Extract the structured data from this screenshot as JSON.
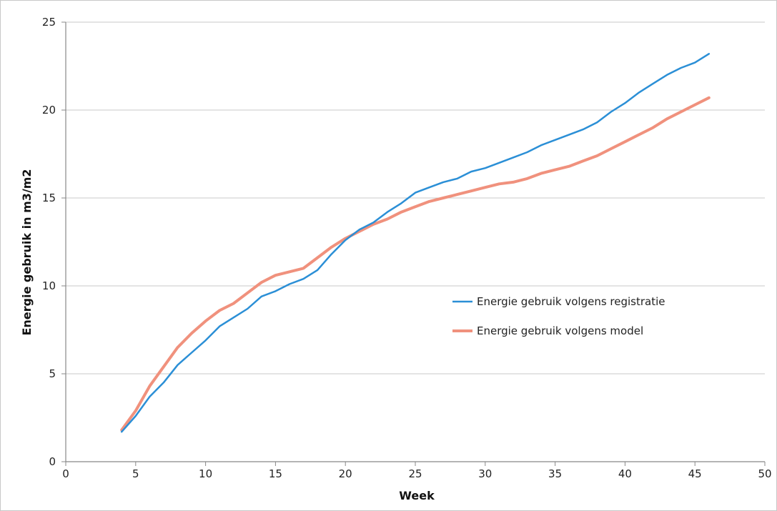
{
  "chart_data": {
    "type": "line",
    "title": "",
    "xlabel": "Week",
    "ylabel": "Energie gebruik in m3/m2",
    "xlim": [
      0,
      50
    ],
    "ylim": [
      0,
      25
    ],
    "xticks": [
      0,
      5,
      10,
      15,
      20,
      25,
      30,
      35,
      40,
      45,
      50
    ],
    "yticks": [
      0,
      5,
      10,
      15,
      20,
      25
    ],
    "grid": "horizontal",
    "legend_position": "center-right",
    "x": [
      4,
      5,
      6,
      7,
      8,
      9,
      10,
      11,
      12,
      13,
      14,
      15,
      16,
      17,
      18,
      19,
      20,
      21,
      22,
      23,
      24,
      25,
      26,
      27,
      28,
      29,
      30,
      31,
      32,
      33,
      34,
      35,
      36,
      37,
      38,
      39,
      40,
      41,
      42,
      43,
      44,
      45,
      46
    ],
    "series": [
      {
        "name": "Energie gebruik volgens registratie",
        "color": "#2b8fd6",
        "values": [
          1.7,
          2.6,
          3.7,
          4.5,
          5.5,
          6.2,
          6.9,
          7.7,
          8.2,
          8.7,
          9.4,
          9.7,
          10.1,
          10.4,
          10.9,
          11.8,
          12.6,
          13.2,
          13.6,
          14.2,
          14.7,
          15.3,
          15.6,
          15.9,
          16.1,
          16.5,
          16.7,
          17.0,
          17.3,
          17.6,
          18.0,
          18.3,
          18.6,
          18.9,
          19.3,
          19.9,
          20.4,
          21.0,
          21.5,
          22.0,
          22.4,
          22.7,
          23.2
        ]
      },
      {
        "name": "Energie gebruik volgens model",
        "color": "#f0917d",
        "values": [
          1.8,
          2.9,
          4.3,
          5.4,
          6.5,
          7.3,
          8.0,
          8.6,
          9.0,
          9.6,
          10.2,
          10.6,
          10.8,
          11.0,
          11.6,
          12.2,
          12.7,
          13.1,
          13.5,
          13.8,
          14.2,
          14.5,
          14.8,
          15.0,
          15.2,
          15.4,
          15.6,
          15.8,
          15.9,
          16.1,
          16.4,
          16.6,
          16.8,
          17.1,
          17.4,
          17.8,
          18.2,
          18.6,
          19.0,
          19.5,
          19.9,
          20.3,
          20.7
        ]
      }
    ]
  }
}
